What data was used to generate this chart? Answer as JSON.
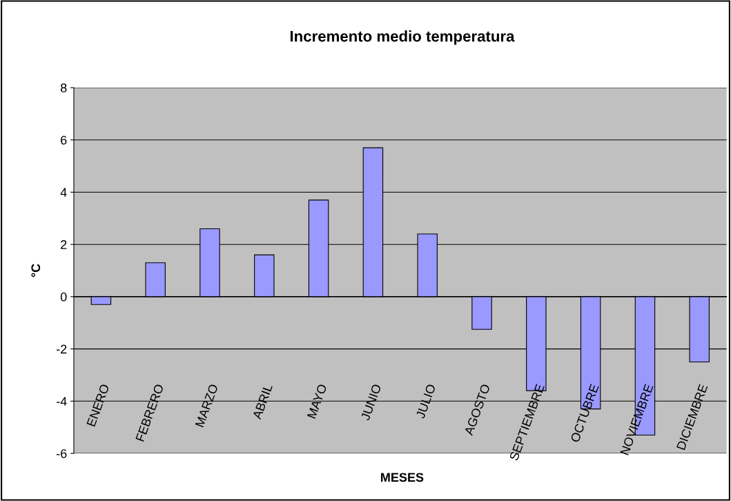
{
  "chart_data": {
    "type": "bar",
    "title": "Incremento medio temperatura",
    "xlabel": "MESES",
    "ylabel": "°C",
    "categories": [
      "ENERO",
      "FEBRERO",
      "MARZO",
      "ABRIL",
      "MAYO",
      "JUNIO",
      "JULIO",
      "AGOSTO",
      "SEPTIEMBRE",
      "OCTUBRE",
      "NOVIEMBRE",
      "DICIEMBRE"
    ],
    "values": [
      -0.3,
      1.3,
      2.6,
      1.6,
      3.7,
      5.7,
      2.4,
      -1.25,
      -3.6,
      -4.3,
      -5.3,
      -2.5
    ],
    "color": "#9999ff",
    "ylim": [
      -6,
      8
    ],
    "yticks": [
      -6,
      -4,
      -2,
      0,
      2,
      4,
      6,
      8
    ],
    "grid": "y",
    "legend": false
  }
}
